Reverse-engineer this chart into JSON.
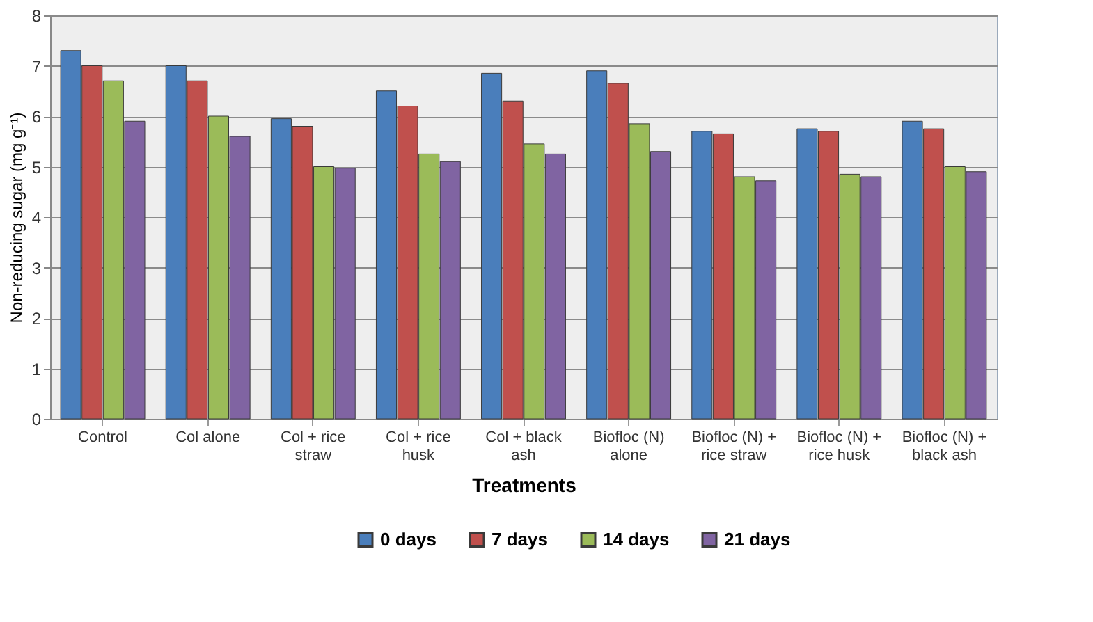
{
  "chart_data": {
    "type": "bar",
    "xlabel": "Treatments",
    "ylabel": "Non-reducing sugar (mg g⁻¹)",
    "categories": [
      "Control",
      "Col alone",
      "Col + rice straw",
      "Col + rice husk",
      "Col + black ash",
      "Biofloc (N) alone",
      "Biofloc (N) + rice straw",
      "Biofloc (N) + rice husk",
      "Biofloc (N) + black ash"
    ],
    "series": [
      {
        "name": "0 days",
        "color": "#4a7ebb",
        "values": [
          7.3,
          7.0,
          5.95,
          6.5,
          6.85,
          6.9,
          5.7,
          5.75,
          5.9
        ]
      },
      {
        "name": "7 days",
        "color": "#c0504d",
        "values": [
          7.0,
          6.7,
          5.8,
          6.2,
          6.3,
          6.65,
          5.65,
          5.7,
          5.75
        ]
      },
      {
        "name": "14 days",
        "color": "#9bbb59",
        "values": [
          6.7,
          6.0,
          5.0,
          5.25,
          5.45,
          5.85,
          4.8,
          4.85,
          5.0
        ]
      },
      {
        "name": "21 days",
        "color": "#8064a2",
        "values": [
          5.9,
          5.6,
          4.97,
          5.1,
          5.25,
          5.3,
          4.72,
          4.8,
          4.9
        ]
      }
    ],
    "ylim": [
      0,
      8
    ],
    "yticks": [
      0,
      1,
      2,
      3,
      4,
      5,
      6,
      7,
      8
    ],
    "grid": "y",
    "legend": "bottom"
  }
}
